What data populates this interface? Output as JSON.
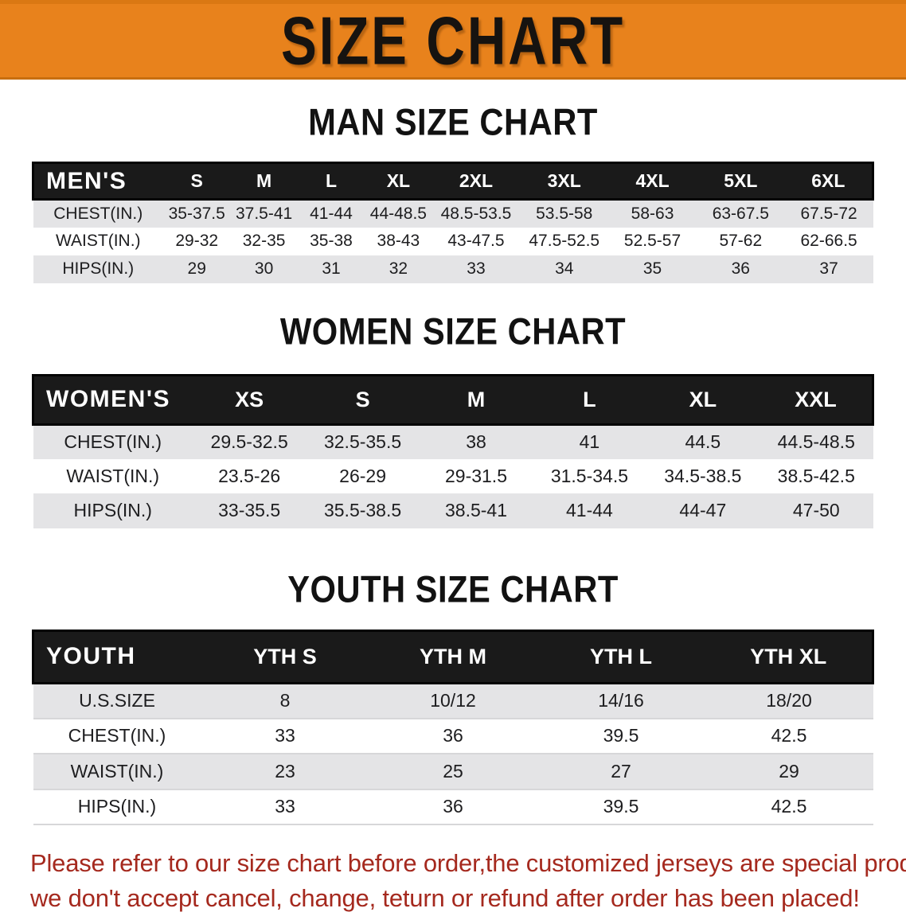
{
  "banner": {
    "title": "SIZE CHART"
  },
  "sections": [
    {
      "heading": "MAN SIZE CHART",
      "table": {
        "label": "MEN'S",
        "columns": [
          "S",
          "M",
          "L",
          "XL",
          "2XL",
          "3XL",
          "4XL",
          "5XL",
          "6XL"
        ],
        "rows": [
          {
            "label": "CHEST(IN.)",
            "values": [
              "35-37.5",
              "37.5-41",
              "41-44",
              "44-48.5",
              "48.5-53.5",
              "53.5-58",
              "58-63",
              "63-67.5",
              "67.5-72"
            ]
          },
          {
            "label": "WAIST(IN.)",
            "values": [
              "29-32",
              "32-35",
              "35-38",
              "38-43",
              "43-47.5",
              "47.5-52.5",
              "52.5-57",
              "57-62",
              "62-66.5"
            ]
          },
          {
            "label": "HIPS(IN.)",
            "values": [
              "29",
              "30",
              "31",
              "32",
              "33",
              "34",
              "35",
              "36",
              "37"
            ]
          }
        ]
      }
    },
    {
      "heading": "WOMEN SIZE CHART",
      "table": {
        "label": "WOMEN'S",
        "columns": [
          "XS",
          "S",
          "M",
          "L",
          "XL",
          "XXL"
        ],
        "rows": [
          {
            "label": "CHEST(IN.)",
            "values": [
              "29.5-32.5",
              "32.5-35.5",
              "38",
              "41",
              "44.5",
              "44.5-48.5"
            ]
          },
          {
            "label": "WAIST(IN.)",
            "values": [
              "23.5-26",
              "26-29",
              "29-31.5",
              "31.5-34.5",
              "34.5-38.5",
              "38.5-42.5"
            ]
          },
          {
            "label": "HIPS(IN.)",
            "values": [
              "33-35.5",
              "35.5-38.5",
              "38.5-41",
              "41-44",
              "44-47",
              "47-50"
            ]
          }
        ]
      }
    },
    {
      "heading": "YOUTH SIZE CHART",
      "table": {
        "label": "YOUTH",
        "columns": [
          "YTH S",
          "YTH M",
          "YTH L",
          "YTH XL"
        ],
        "rows": [
          {
            "label": "U.S.SIZE",
            "values": [
              "8",
              "10/12",
              "14/16",
              "18/20"
            ]
          },
          {
            "label": "CHEST(IN.)",
            "values": [
              "33",
              "36",
              "39.5",
              "42.5"
            ]
          },
          {
            "label": "WAIST(IN.)",
            "values": [
              "23",
              "25",
              "27",
              "29"
            ]
          },
          {
            "label": "HIPS(IN.)",
            "values": [
              "33",
              "36",
              "39.5",
              "42.5"
            ]
          }
        ]
      }
    }
  ],
  "disclaimer": {
    "line1": "Please refer to our size chart before order,the customized jerseys are special products,",
    "line2": "we don't accept cancel, change, teturn or refund after order has been placed!"
  },
  "colors": {
    "banner_bg": "#E8821C",
    "header_bar": "#1A1A1A",
    "row_stripe": "#E4E4E6",
    "disclaimer_red": "#A5291E"
  }
}
